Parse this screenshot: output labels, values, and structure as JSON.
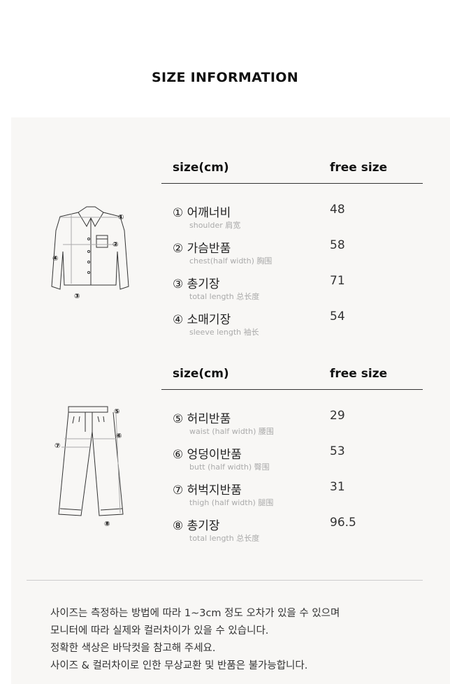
{
  "title": "SIZE INFORMATION",
  "top_table": {
    "header": {
      "label": "size(cm)",
      "size": "free size"
    },
    "rows": [
      {
        "name": "① 어깨너비",
        "sub": "shoulder 肩宽",
        "value": "48"
      },
      {
        "name": "② 가슴반품",
        "sub": "chest(half width) 胸围",
        "value": "58"
      },
      {
        "name": "③ 총기장",
        "sub": "total length 总长度",
        "value": "71"
      },
      {
        "name": "④ 소매기장",
        "sub": "sleeve length 袖长",
        "value": "54"
      }
    ]
  },
  "bottom_table": {
    "header": {
      "label": "size(cm)",
      "size": "free size"
    },
    "rows": [
      {
        "name": "⑤ 허리반품",
        "sub": "waist (half width) 腰围",
        "value": "29"
      },
      {
        "name": "⑥ 엉덩이반품",
        "sub": "butt (half width) 臀围",
        "value": "53"
      },
      {
        "name": "⑦ 허벅지반품",
        "sub": "thigh (half width) 腿围",
        "value": "31"
      },
      {
        "name": "⑧ 총기장",
        "sub": "total length 总长度",
        "value": "96.5"
      }
    ]
  },
  "diagram_labels": {
    "shirt": [
      "①",
      "②",
      "③",
      "④"
    ],
    "pants": [
      "⑤",
      "⑥",
      "⑦",
      "⑧"
    ]
  },
  "notes": [
    "사이즈는 측정하는 방법에 따라 1~3cm 정도 오차가 있을 수 있으며",
    "모니터에 따라 실제와 컬러차이가 있을 수 있습니다.",
    "정확한 색상은 바닥컷을 참고해 주세요.",
    "사이즈 & 컬러차이로 인한 무상교환 및 반품은 불가능합니다."
  ]
}
